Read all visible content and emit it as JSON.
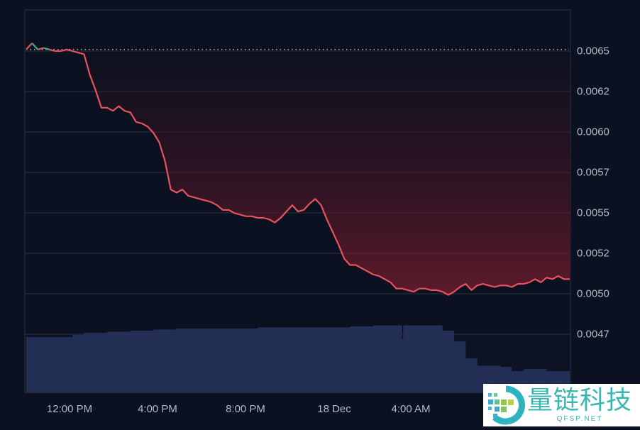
{
  "chart_data": {
    "type": "line",
    "title": "",
    "xlabel": "",
    "ylabel": "",
    "grid": true,
    "legend": null,
    "colors": {
      "background": "#0b1120",
      "line_down": "#e8525c",
      "line_up": "#3fae86",
      "fill_top": "#5a1a2a",
      "volume": "#26325a",
      "grid": "#2a3142",
      "reference_line": "#c9ccd4",
      "axis_text": "#b4b9c6"
    },
    "y_axis": {
      "position": "right",
      "ticks": [
        "0.0065",
        "0.0062",
        "0.0060",
        "0.0057",
        "0.0055",
        "0.0052",
        "0.0050",
        "0.0047"
      ],
      "ylim": [
        0.00445,
        0.00692
      ]
    },
    "x_axis": {
      "ticks": [
        "12:00 PM",
        "4:00 PM",
        "8:00 PM",
        "18 Dec",
        "4:00 AM"
      ]
    },
    "reference_value": 0.00651,
    "series": [
      {
        "name": "price",
        "points": [
          [
            0,
            0.00651
          ],
          [
            0.5,
            0.00655
          ],
          [
            1,
            0.00651
          ],
          [
            1.5,
            0.00652
          ],
          [
            2,
            0.00651
          ],
          [
            2.5,
            0.0065
          ],
          [
            3,
            0.0065
          ],
          [
            3.5,
            0.00651
          ],
          [
            4,
            0.0065
          ],
          [
            5,
            0.00648
          ],
          [
            5.5,
            0.00635
          ],
          [
            6,
            0.00625
          ],
          [
            6.5,
            0.00614
          ],
          [
            7,
            0.00614
          ],
          [
            7.5,
            0.00612
          ],
          [
            8,
            0.00615
          ],
          [
            8.5,
            0.00612
          ],
          [
            9,
            0.00611
          ],
          [
            9.5,
            0.00605
          ],
          [
            10,
            0.00604
          ],
          [
            10.5,
            0.00602
          ],
          [
            11,
            0.00598
          ],
          [
            11.5,
            0.00592
          ],
          [
            12,
            0.0058
          ],
          [
            12.5,
            0.00562
          ],
          [
            13,
            0.0056
          ],
          [
            13.5,
            0.00562
          ],
          [
            14,
            0.00558
          ],
          [
            14.5,
            0.00557
          ],
          [
            15,
            0.00556
          ],
          [
            15.5,
            0.00555
          ],
          [
            16,
            0.00554
          ],
          [
            16.5,
            0.00552
          ],
          [
            17,
            0.00549
          ],
          [
            17.5,
            0.00549
          ],
          [
            18,
            0.00547
          ],
          [
            18.5,
            0.00546
          ],
          [
            19,
            0.00545
          ],
          [
            19.5,
            0.00545
          ],
          [
            20,
            0.00544
          ],
          [
            20.5,
            0.00544
          ],
          [
            21,
            0.00543
          ],
          [
            21.5,
            0.00541
          ],
          [
            22,
            0.00544
          ],
          [
            22.5,
            0.00548
          ],
          [
            23,
            0.00552
          ],
          [
            23.5,
            0.00548
          ],
          [
            24,
            0.00549
          ],
          [
            24.5,
            0.00553
          ],
          [
            25,
            0.00556
          ],
          [
            25.5,
            0.00552
          ],
          [
            26,
            0.00543
          ],
          [
            26.5,
            0.00535
          ],
          [
            27,
            0.00527
          ],
          [
            27.5,
            0.00518
          ],
          [
            28,
            0.00514
          ],
          [
            28.5,
            0.00514
          ],
          [
            29,
            0.00512
          ],
          [
            29.5,
            0.0051
          ],
          [
            30,
            0.00508
          ],
          [
            30.5,
            0.00507
          ],
          [
            31,
            0.00505
          ],
          [
            31.5,
            0.00503
          ],
          [
            32,
            0.00499
          ],
          [
            32.5,
            0.00499
          ],
          [
            33,
            0.00498
          ],
          [
            33.5,
            0.00497
          ],
          [
            34,
            0.00499
          ],
          [
            34.5,
            0.00499
          ],
          [
            35,
            0.00498
          ],
          [
            35.5,
            0.00498
          ],
          [
            36,
            0.00497
          ],
          [
            36.5,
            0.00495
          ],
          [
            37,
            0.00497
          ],
          [
            37.5,
            0.005
          ],
          [
            38,
            0.00502
          ],
          [
            38.5,
            0.00498
          ],
          [
            39,
            0.00501
          ],
          [
            39.5,
            0.00502
          ],
          [
            40,
            0.00501
          ],
          [
            40.5,
            0.005
          ],
          [
            41,
            0.00501
          ],
          [
            41.5,
            0.00501
          ],
          [
            42,
            0.005
          ],
          [
            42.5,
            0.00502
          ],
          [
            43,
            0.00502
          ],
          [
            43.5,
            0.00503
          ],
          [
            44,
            0.00505
          ],
          [
            44.5,
            0.00503
          ],
          [
            45,
            0.00506
          ],
          [
            45.5,
            0.00505
          ],
          [
            46,
            0.00507
          ],
          [
            46.5,
            0.00505
          ],
          [
            47,
            0.00505
          ]
        ]
      }
    ],
    "volume": {
      "points": [
        [
          0,
          0.52
        ],
        [
          3,
          0.52
        ],
        [
          4,
          0.54
        ],
        [
          5,
          0.56
        ],
        [
          7,
          0.57
        ],
        [
          9,
          0.58
        ],
        [
          11,
          0.59
        ],
        [
          13,
          0.6
        ],
        [
          17,
          0.6
        ],
        [
          20,
          0.61
        ],
        [
          25,
          0.61
        ],
        [
          28,
          0.62
        ],
        [
          30,
          0.63
        ],
        [
          32,
          0.63
        ],
        [
          32.5,
          0.5
        ],
        [
          32.6,
          0.63
        ],
        [
          35,
          0.63
        ],
        [
          36,
          0.58
        ],
        [
          37,
          0.48
        ],
        [
          38,
          0.32
        ],
        [
          39,
          0.25
        ],
        [
          41,
          0.24
        ],
        [
          42,
          0.2
        ],
        [
          43,
          0.22
        ],
        [
          45,
          0.2
        ],
        [
          47,
          0.19
        ]
      ],
      "ymax": 1
    }
  },
  "watermark": {
    "cn_text": "量链科技",
    "en_text": "QFSP.NET"
  }
}
